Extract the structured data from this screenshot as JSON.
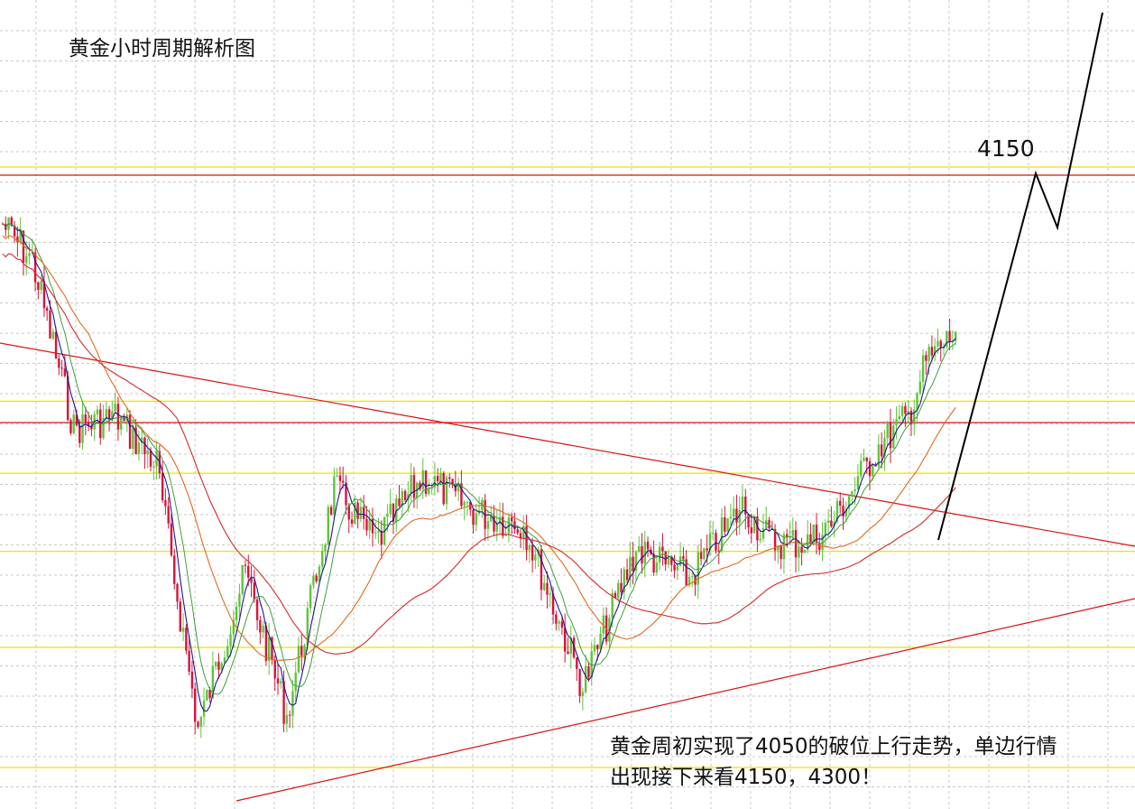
{
  "chart_data": {
    "type": "candlestick",
    "title": "黄金小时周期解析图",
    "instrument": "黄金",
    "timeframe": "小时",
    "grid": true,
    "projection_label": "4150",
    "annotation_lines": [
      "黄金周初实现了4050的破位上行走势，单边行情",
      "出现接下来看4150，4300！"
    ],
    "targets": [
      4150,
      4300
    ],
    "breakout_level": 4050,
    "colors": {
      "bull": "#5ec43a",
      "bear": "#d8123c",
      "ma_fast": "#1a1a8c",
      "ma_mid": "#3f9e3f",
      "ma_slow_a": "#e06a1c",
      "ma_slow_b": "#d42a2a",
      "support_resistance": "#dd1111",
      "fib_line": "#f2e100",
      "projection": "#000000",
      "grid": "#c8c8c8"
    },
    "pivots": [
      [
        0,
        0.08
      ],
      [
        10,
        0.14
      ],
      [
        24,
        0.42
      ],
      [
        38,
        0.4
      ],
      [
        52,
        0.48
      ],
      [
        66,
        0.92
      ],
      [
        82,
        0.66
      ],
      [
        96,
        0.9
      ],
      [
        112,
        0.52
      ],
      [
        126,
        0.61
      ],
      [
        142,
        0.5
      ],
      [
        160,
        0.56
      ],
      [
        176,
        0.58
      ],
      [
        196,
        0.85
      ],
      [
        214,
        0.62
      ],
      [
        232,
        0.67
      ],
      [
        250,
        0.55
      ],
      [
        260,
        0.61
      ],
      [
        272,
        0.61
      ],
      [
        280,
        0.58
      ],
      [
        296,
        0.45
      ],
      [
        306,
        0.4
      ],
      [
        312,
        0.31
      ],
      [
        322,
        0.26
      ]
    ],
    "projection_path": [
      [
        322,
        0.26
      ],
      [
        328,
        0.17
      ],
      [
        332,
        0.25
      ],
      [
        346,
        0.0
      ]
    ]
  }
}
